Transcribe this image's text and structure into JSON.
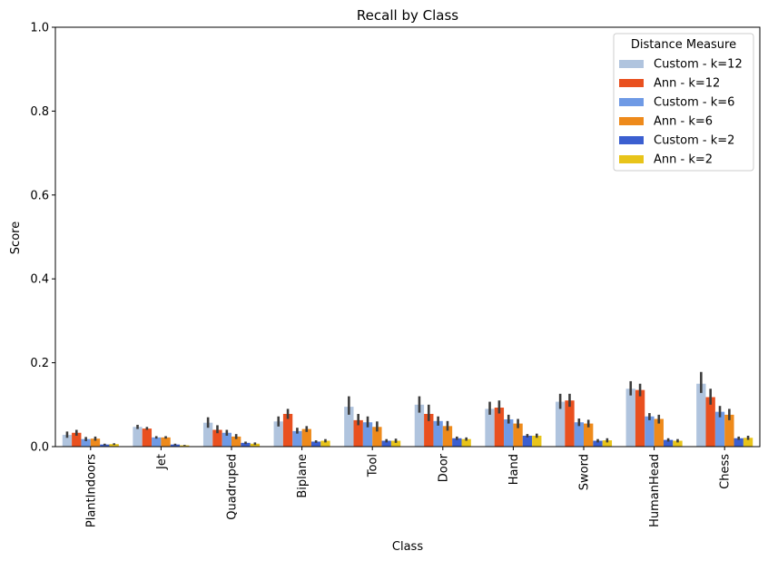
{
  "chart_data": {
    "type": "bar",
    "title": "Recall by Class",
    "xlabel": "Class",
    "ylabel": "Score",
    "ylim": [
      0,
      1.0
    ],
    "yticks": [
      "0.0",
      "0.2",
      "0.4",
      "0.6",
      "0.8",
      "1.0"
    ],
    "grid": false,
    "legend_placement": "top-right",
    "legend_title": "Distance Measure",
    "categories": [
      "PlantIndoors",
      "Jet",
      "Quadruped",
      "Biplane",
      "Tool",
      "Door",
      "Hand",
      "Sword",
      "HumanHead",
      "Chess"
    ],
    "series": [
      {
        "name": "Custom - k=12",
        "color": "#b0c4de",
        "values": [
          0.028,
          0.047,
          0.057,
          0.06,
          0.095,
          0.1,
          0.09,
          0.107,
          0.138,
          0.15
        ],
        "err_low": [
          0.021,
          0.042,
          0.045,
          0.048,
          0.076,
          0.081,
          0.076,
          0.09,
          0.122,
          0.128
        ],
        "err_high": [
          0.036,
          0.052,
          0.07,
          0.072,
          0.12,
          0.12,
          0.107,
          0.126,
          0.156,
          0.178
        ]
      },
      {
        "name": "Ann - k=12",
        "color": "#e9501f",
        "values": [
          0.033,
          0.043,
          0.04,
          0.078,
          0.063,
          0.078,
          0.093,
          0.11,
          0.135,
          0.118
        ],
        "err_low": [
          0.026,
          0.04,
          0.032,
          0.066,
          0.051,
          0.061,
          0.079,
          0.095,
          0.12,
          0.1
        ],
        "err_high": [
          0.04,
          0.047,
          0.051,
          0.09,
          0.078,
          0.1,
          0.11,
          0.126,
          0.15,
          0.138
        ]
      },
      {
        "name": "Custom - k=6",
        "color": "#6f9ae5",
        "values": [
          0.018,
          0.022,
          0.033,
          0.037,
          0.058,
          0.061,
          0.065,
          0.058,
          0.072,
          0.083
        ],
        "err_low": [
          0.013,
          0.019,
          0.026,
          0.031,
          0.046,
          0.05,
          0.055,
          0.049,
          0.063,
          0.07
        ],
        "err_high": [
          0.023,
          0.025,
          0.04,
          0.045,
          0.072,
          0.072,
          0.076,
          0.067,
          0.08,
          0.097
        ]
      },
      {
        "name": "Ann - k=6",
        "color": "#ee8a1b",
        "values": [
          0.019,
          0.022,
          0.024,
          0.042,
          0.047,
          0.049,
          0.055,
          0.055,
          0.066,
          0.076
        ],
        "err_low": [
          0.014,
          0.019,
          0.018,
          0.035,
          0.036,
          0.038,
          0.044,
          0.046,
          0.055,
          0.063
        ],
        "err_high": [
          0.024,
          0.025,
          0.03,
          0.049,
          0.06,
          0.061,
          0.066,
          0.064,
          0.076,
          0.09
        ]
      },
      {
        "name": "Custom - k=2",
        "color": "#3b5fd0",
        "values": [
          0.005,
          0.005,
          0.009,
          0.012,
          0.014,
          0.02,
          0.026,
          0.014,
          0.016,
          0.02
        ],
        "err_low": [
          0.003,
          0.003,
          0.006,
          0.009,
          0.01,
          0.016,
          0.022,
          0.01,
          0.012,
          0.016
        ],
        "err_high": [
          0.007,
          0.007,
          0.012,
          0.015,
          0.018,
          0.024,
          0.03,
          0.018,
          0.02,
          0.024
        ]
      },
      {
        "name": "Ann - k=2",
        "color": "#e8c41a",
        "values": [
          0.006,
          0.003,
          0.007,
          0.014,
          0.014,
          0.018,
          0.026,
          0.015,
          0.014,
          0.021
        ],
        "err_low": [
          0.004,
          0.002,
          0.004,
          0.01,
          0.009,
          0.014,
          0.021,
          0.01,
          0.01,
          0.016
        ],
        "err_high": [
          0.008,
          0.004,
          0.01,
          0.018,
          0.019,
          0.022,
          0.031,
          0.02,
          0.018,
          0.026
        ]
      }
    ]
  }
}
